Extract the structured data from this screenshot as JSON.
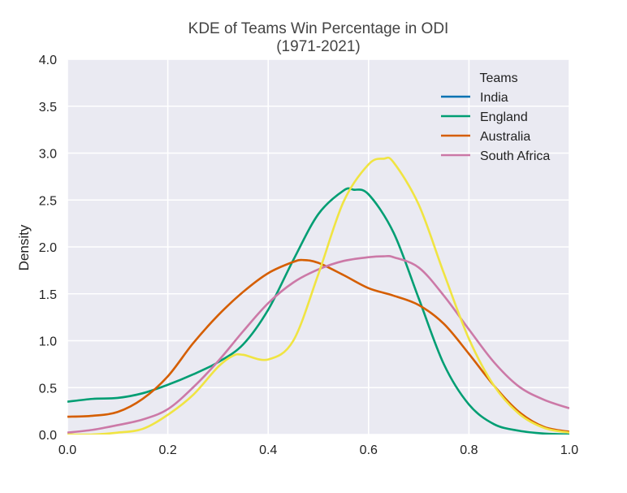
{
  "chart_data": {
    "type": "line",
    "title": "KDE of Teams Win Percentage in ODI",
    "subtitle": "(1971-2021)",
    "xlabel": "",
    "ylabel": "Density",
    "xlim": [
      0.0,
      1.0
    ],
    "ylim": [
      0.0,
      4.0
    ],
    "x_ticks": [
      "0.0",
      "0.2",
      "0.4",
      "0.6",
      "0.8",
      "1.0"
    ],
    "y_ticks": [
      "0.0",
      "0.5",
      "1.0",
      "1.5",
      "2.0",
      "2.5",
      "3.0",
      "3.5",
      "4.0"
    ],
    "grid": true,
    "legend_position": "top-right",
    "legend_title": "Teams",
    "colors": {
      "India": "#0072B2",
      "England": "#009E73",
      "Australia": "#D55E00",
      "South Africa": "#CC79A7",
      "Unlabeled": "#F0E442",
      "plot_background": "#EAEAF2"
    },
    "series": [
      {
        "name": "India",
        "x": [],
        "y": []
      },
      {
        "name": "England",
        "x": [
          0.0,
          0.05,
          0.1,
          0.15,
          0.2,
          0.25,
          0.3,
          0.35,
          0.4,
          0.45,
          0.5,
          0.55,
          0.57,
          0.6,
          0.65,
          0.7,
          0.75,
          0.8,
          0.85,
          0.9,
          0.95,
          1.0
        ],
        "y": [
          0.35,
          0.38,
          0.39,
          0.44,
          0.53,
          0.64,
          0.77,
          0.96,
          1.33,
          1.86,
          2.35,
          2.6,
          2.61,
          2.56,
          2.15,
          1.45,
          0.75,
          0.32,
          0.11,
          0.04,
          0.01,
          0.0
        ]
      },
      {
        "name": "Australia",
        "x": [
          0.0,
          0.05,
          0.1,
          0.15,
          0.2,
          0.25,
          0.3,
          0.35,
          0.4,
          0.45,
          0.47,
          0.5,
          0.55,
          0.6,
          0.65,
          0.7,
          0.75,
          0.8,
          0.85,
          0.9,
          0.95,
          1.0
        ],
        "y": [
          0.19,
          0.2,
          0.24,
          0.38,
          0.62,
          0.97,
          1.27,
          1.52,
          1.72,
          1.84,
          1.86,
          1.83,
          1.7,
          1.56,
          1.48,
          1.38,
          1.18,
          0.86,
          0.52,
          0.24,
          0.08,
          0.03
        ]
      },
      {
        "name": "South Africa",
        "x": [
          0.0,
          0.05,
          0.1,
          0.15,
          0.2,
          0.25,
          0.3,
          0.35,
          0.4,
          0.45,
          0.5,
          0.55,
          0.6,
          0.63,
          0.65,
          0.7,
          0.75,
          0.8,
          0.85,
          0.9,
          0.95,
          1.0
        ],
        "y": [
          0.02,
          0.05,
          0.1,
          0.16,
          0.27,
          0.5,
          0.78,
          1.1,
          1.4,
          1.62,
          1.76,
          1.85,
          1.89,
          1.9,
          1.89,
          1.78,
          1.48,
          1.12,
          0.77,
          0.51,
          0.37,
          0.28
        ]
      },
      {
        "x": [
          0.0,
          0.05,
          0.1,
          0.15,
          0.2,
          0.25,
          0.3,
          0.33,
          0.35,
          0.4,
          0.45,
          0.5,
          0.55,
          0.6,
          0.63,
          0.65,
          0.7,
          0.75,
          0.8,
          0.85,
          0.9,
          0.95,
          1.0
        ],
        "y": [
          0.0,
          0.0,
          0.02,
          0.06,
          0.21,
          0.42,
          0.72,
          0.84,
          0.85,
          0.8,
          1.0,
          1.71,
          2.48,
          2.88,
          2.94,
          2.9,
          2.45,
          1.72,
          1.02,
          0.52,
          0.22,
          0.07,
          0.02
        ]
      }
    ]
  }
}
